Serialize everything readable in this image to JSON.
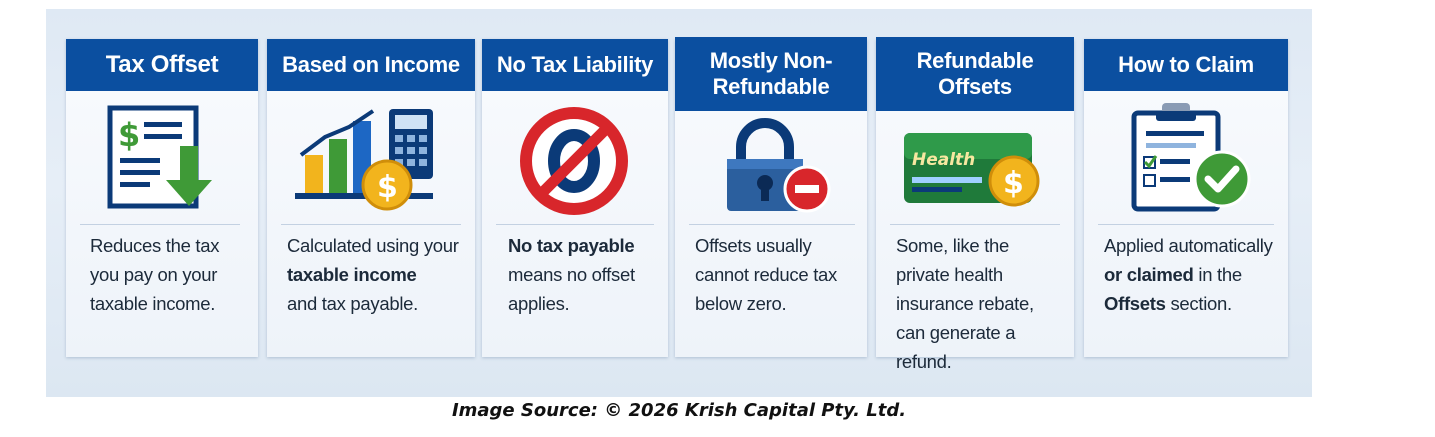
{
  "cards": [
    {
      "title": "Tax Offset",
      "icon": "tax-document-icon",
      "text": [
        "Reduces the tax",
        "you pay on your",
        "taxable income."
      ]
    },
    {
      "title": "Based on Income",
      "icon": "income-chart-calculator-icon",
      "text_pre": "Calculated using your",
      "text_bold": "taxable income",
      "text_post": "and tax payable."
    },
    {
      "title": "No Tax Liability",
      "icon": "zero-prohibited-icon",
      "text_bold": "No tax payable",
      "text_post1": "means no offset",
      "text_post2": "applies."
    },
    {
      "title": "Mostly Non-\nRefundable",
      "icon": "padlock-minus-icon",
      "text": [
        "Offsets usually",
        "cannot reduce tax",
        "below zero."
      ]
    },
    {
      "title": "Refundable\nOffsets",
      "icon": "health-card-dollar-icon",
      "icon_card_label": "Health",
      "text": [
        "Some, like the",
        "private health",
        "insurance rebate,",
        "can generate a refund."
      ]
    },
    {
      "title": "How to Claim",
      "icon": "clipboard-check-icon",
      "text_pre": "Applied automatically",
      "text_bold1": "or claimed",
      "text_mid": " in the",
      "text_bold2": "Offsets",
      "text_post": " section."
    }
  ],
  "colors": {
    "header_blue": "#0b4fa0",
    "green": "#3f9a37",
    "red": "#d8262b",
    "gold": "#f2b41d"
  },
  "source_caption": "Image Source: © 2026 Krish Capital Pty. Ltd."
}
